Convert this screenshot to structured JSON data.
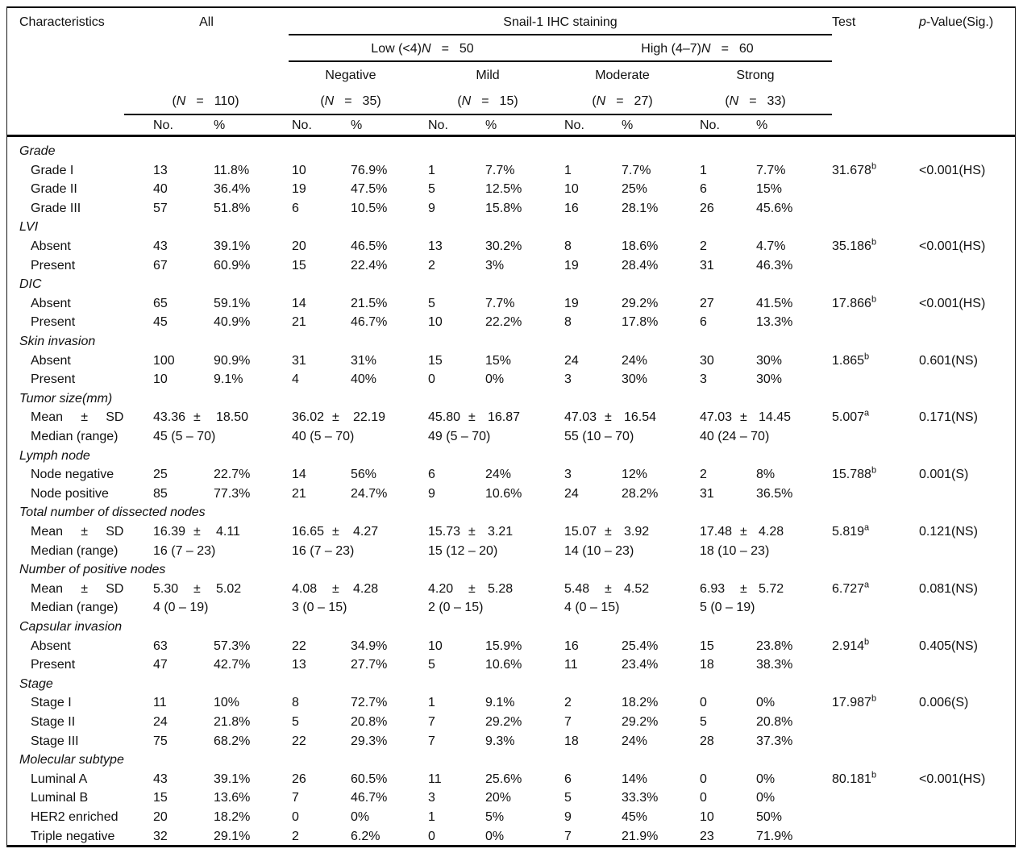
{
  "header": {
    "characteristics": "Characteristics",
    "all_label": "All",
    "staining_label": "Snail-1 IHC staining",
    "test_label": "Test",
    "pvalue_italic": "p",
    "pvalue_rest": "-Value(Sig.)",
    "low": {
      "prefix": "Low (<4)",
      "n": "N",
      "eq": "=",
      "value": "50"
    },
    "high": {
      "prefix": "High (4–7)",
      "n": "N",
      "eq": "=",
      "value": "60"
    },
    "subcols": [
      "Negative",
      "Mild",
      "Moderate",
      "Strong"
    ],
    "group_n": [
      {
        "open": "(",
        "n": "N",
        "eq": "=",
        "value": "110)"
      },
      {
        "open": "(",
        "n": "N",
        "eq": "=",
        "value": "35)"
      },
      {
        "open": "(",
        "n": "N",
        "eq": "=",
        "value": "15)"
      },
      {
        "open": "(",
        "n": "N",
        "eq": "=",
        "value": "27)"
      },
      {
        "open": "(",
        "n": "N",
        "eq": "=",
        "value": "33)"
      }
    ],
    "no_label": "No.",
    "pct_label": "%"
  },
  "pm": "±",
  "sections": [
    {
      "title": "Grade",
      "rows": [
        {
          "label": "Grade I",
          "kind": "pct",
          "values": [
            [
              "13",
              "11.8%"
            ],
            [
              "10",
              "76.9%"
            ],
            [
              "1",
              "7.7%"
            ],
            [
              "1",
              "7.7%"
            ],
            [
              "1",
              "7.7%"
            ]
          ],
          "test": "31.678",
          "sup": "b",
          "p": "<0.001(HS)"
        },
        {
          "label": "Grade II",
          "kind": "pct",
          "values": [
            [
              "40",
              "36.4%"
            ],
            [
              "19",
              "47.5%"
            ],
            [
              "5",
              "12.5%"
            ],
            [
              "10",
              "25%"
            ],
            [
              "6",
              "15%"
            ]
          ]
        },
        {
          "label": "Grade III",
          "kind": "pct",
          "values": [
            [
              "57",
              "51.8%"
            ],
            [
              "6",
              "10.5%"
            ],
            [
              "9",
              "15.8%"
            ],
            [
              "16",
              "28.1%"
            ],
            [
              "26",
              "45.6%"
            ]
          ]
        }
      ]
    },
    {
      "title": "LVI",
      "rows": [
        {
          "label": "Absent",
          "kind": "pct",
          "values": [
            [
              "43",
              "39.1%"
            ],
            [
              "20",
              "46.5%"
            ],
            [
              "13",
              "30.2%"
            ],
            [
              "8",
              "18.6%"
            ],
            [
              "2",
              "4.7%"
            ]
          ],
          "test": "35.186",
          "sup": "b",
          "p": "<0.001(HS)"
        },
        {
          "label": "Present",
          "kind": "pct",
          "values": [
            [
              "67",
              "60.9%"
            ],
            [
              "15",
              "22.4%"
            ],
            [
              "2",
              "3%"
            ],
            [
              "19",
              "28.4%"
            ],
            [
              "31",
              "46.3%"
            ]
          ]
        }
      ]
    },
    {
      "title": "DIC",
      "rows": [
        {
          "label": "Absent",
          "kind": "pct",
          "values": [
            [
              "65",
              "59.1%"
            ],
            [
              "14",
              "21.5%"
            ],
            [
              "5",
              "7.7%"
            ],
            [
              "19",
              "29.2%"
            ],
            [
              "27",
              "41.5%"
            ]
          ],
          "test": "17.866",
          "sup": "b",
          "p": "<0.001(HS)"
        },
        {
          "label": "Present",
          "kind": "pct",
          "values": [
            [
              "45",
              "40.9%"
            ],
            [
              "21",
              "46.7%"
            ],
            [
              "10",
              "22.2%"
            ],
            [
              "8",
              "17.8%"
            ],
            [
              "6",
              "13.3%"
            ]
          ]
        }
      ]
    },
    {
      "title": "Skin invasion",
      "rows": [
        {
          "label": "Absent",
          "kind": "pct",
          "values": [
            [
              "100",
              "90.9%"
            ],
            [
              "31",
              "31%"
            ],
            [
              "15",
              "15%"
            ],
            [
              "24",
              "24%"
            ],
            [
              "30",
              "30%"
            ]
          ],
          "test": "1.865",
          "sup": "b",
          "p": "0.601(NS)"
        },
        {
          "label": "Present",
          "kind": "pct",
          "values": [
            [
              "10",
              "9.1%"
            ],
            [
              "4",
              "40%"
            ],
            [
              "0",
              "0%"
            ],
            [
              "3",
              "30%"
            ],
            [
              "3",
              "30%"
            ]
          ]
        }
      ]
    },
    {
      "title": "Tumor size(mm)",
      "rows": [
        {
          "label": "Mean     ±     SD",
          "kind": "mean",
          "values": [
            [
              "43.36",
              "18.50"
            ],
            [
              "36.02",
              "22.19"
            ],
            [
              "45.80",
              "16.87"
            ],
            [
              "47.03",
              "16.54"
            ],
            [
              "47.03",
              "14.45"
            ]
          ],
          "test": "5.007",
          "sup": "a",
          "p": "0.171(NS)"
        },
        {
          "label": "Median (range)",
          "kind": "median",
          "values": [
            "45 (5 – 70)",
            "40 (5 – 70)",
            "49 (5 – 70)",
            "55 (10 – 70)",
            "40 (24 – 70)"
          ]
        }
      ]
    },
    {
      "title": "Lymph node",
      "rows": [
        {
          "label": "Node negative",
          "kind": "pct",
          "values": [
            [
              "25",
              "22.7%"
            ],
            [
              "14",
              "56%"
            ],
            [
              "6",
              "24%"
            ],
            [
              "3",
              "12%"
            ],
            [
              "2",
              "8%"
            ]
          ],
          "test": "15.788",
          "sup": "b",
          "p": "0.001(S)"
        },
        {
          "label": "Node positive",
          "kind": "pct",
          "values": [
            [
              "85",
              "77.3%"
            ],
            [
              "21",
              "24.7%"
            ],
            [
              "9",
              "10.6%"
            ],
            [
              "24",
              "28.2%"
            ],
            [
              "31",
              "36.5%"
            ]
          ]
        }
      ]
    },
    {
      "title": "Total number of dissected nodes",
      "rows": [
        {
          "label": "Mean     ±     SD",
          "kind": "mean",
          "values": [
            [
              "16.39",
              "4.11"
            ],
            [
              "16.65",
              "4.27"
            ],
            [
              "15.73",
              "3.21"
            ],
            [
              "15.07",
              "3.92"
            ],
            [
              "17.48",
              "4.28"
            ]
          ],
          "test": "5.819",
          "sup": "a",
          "p": "0.121(NS)"
        },
        {
          "label": "Median (range)",
          "kind": "median",
          "values": [
            "16 (7 – 23)",
            "16 (7 – 23)",
            "15 (12 – 20)",
            "14 (10 – 23)",
            "18 (10 – 23)"
          ]
        }
      ]
    },
    {
      "title": "Number of positive nodes",
      "rows": [
        {
          "label": "Mean     ±     SD",
          "kind": "mean",
          "values": [
            [
              "5.30",
              "5.02"
            ],
            [
              "4.08",
              "4.28"
            ],
            [
              "4.20",
              "5.28"
            ],
            [
              "5.48",
              "4.52"
            ],
            [
              "6.93",
              "5.72"
            ]
          ],
          "test": "6.727",
          "sup": "a",
          "p": "0.081(NS)"
        },
        {
          "label": "Median (range)",
          "kind": "median",
          "values": [
            "4 (0 – 19)",
            "3 (0 – 15)",
            "2 (0 – 15)",
            "4 (0 – 15)",
            "5 (0 – 19)"
          ]
        }
      ]
    },
    {
      "title": "Capsular invasion",
      "rows": [
        {
          "label": "Absent",
          "kind": "pct",
          "values": [
            [
              "63",
              "57.3%"
            ],
            [
              "22",
              "34.9%"
            ],
            [
              "10",
              "15.9%"
            ],
            [
              "16",
              "25.4%"
            ],
            [
              "15",
              "23.8%"
            ]
          ],
          "test": "2.914",
          "sup": "b",
          "p": "0.405(NS)"
        },
        {
          "label": "Present",
          "kind": "pct",
          "values": [
            [
              "47",
              "42.7%"
            ],
            [
              "13",
              "27.7%"
            ],
            [
              "5",
              "10.6%"
            ],
            [
              "11",
              "23.4%"
            ],
            [
              "18",
              "38.3%"
            ]
          ]
        }
      ]
    },
    {
      "title": "Stage",
      "rows": [
        {
          "label": "Stage I",
          "kind": "pct",
          "values": [
            [
              "11",
              "10%"
            ],
            [
              "8",
              "72.7%"
            ],
            [
              "1",
              "9.1%"
            ],
            [
              "2",
              "18.2%"
            ],
            [
              "0",
              "0%"
            ]
          ],
          "test": "17.987",
          "sup": "b",
          "p": "0.006(S)"
        },
        {
          "label": "Stage II",
          "kind": "pct",
          "values": [
            [
              "24",
              "21.8%"
            ],
            [
              "5",
              "20.8%"
            ],
            [
              "7",
              "29.2%"
            ],
            [
              "7",
              "29.2%"
            ],
            [
              "5",
              "20.8%"
            ]
          ]
        },
        {
          "label": "Stage III",
          "kind": "pct",
          "values": [
            [
              "75",
              "68.2%"
            ],
            [
              "22",
              "29.3%"
            ],
            [
              "7",
              "9.3%"
            ],
            [
              "18",
              "24%"
            ],
            [
              "28",
              "37.3%"
            ]
          ]
        }
      ]
    },
    {
      "title": "Molecular subtype",
      "rows": [
        {
          "label": "Luminal A",
          "kind": "pct",
          "values": [
            [
              "43",
              "39.1%"
            ],
            [
              "26",
              "60.5%"
            ],
            [
              "11",
              "25.6%"
            ],
            [
              "6",
              "14%"
            ],
            [
              "0",
              "0%"
            ]
          ],
          "test": "80.181",
          "sup": "b",
          "p": "<0.001(HS)"
        },
        {
          "label": "Luminal B",
          "kind": "pct",
          "values": [
            [
              "15",
              "13.6%"
            ],
            [
              "7",
              "46.7%"
            ],
            [
              "3",
              "20%"
            ],
            [
              "5",
              "33.3%"
            ],
            [
              "0",
              "0%"
            ]
          ]
        },
        {
          "label": "HER2 enriched",
          "kind": "pct",
          "values": [
            [
              "20",
              "18.2%"
            ],
            [
              "0",
              "0%"
            ],
            [
              "1",
              "5%"
            ],
            [
              "9",
              "45%"
            ],
            [
              "10",
              "50%"
            ]
          ]
        },
        {
          "label": "Triple negative",
          "kind": "pct",
          "values": [
            [
              "32",
              "29.1%"
            ],
            [
              "2",
              "6.2%"
            ],
            [
              "0",
              "0%"
            ],
            [
              "7",
              "21.9%"
            ],
            [
              "23",
              "71.9%"
            ]
          ]
        }
      ]
    }
  ]
}
